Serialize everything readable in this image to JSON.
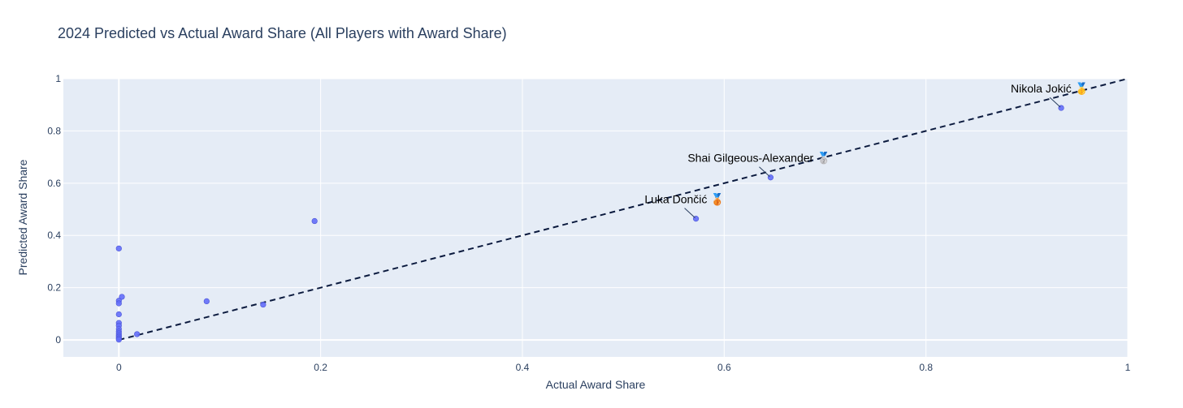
{
  "chart_data": {
    "type": "scatter",
    "title": "2024 Predicted vs Actual Award Share (All Players with Award Share)",
    "xlabel": "Actual Award Share",
    "ylabel": "Predicted Award Share",
    "xlim": [
      -0.055,
      1.0
    ],
    "ylim": [
      -0.065,
      1.0
    ],
    "x_ticks": [
      0,
      0.2,
      0.4,
      0.6,
      0.8,
      1
    ],
    "x_tick_labels": [
      "0",
      "0.2",
      "0.4",
      "0.6",
      "0.8",
      "1"
    ],
    "y_ticks": [
      0,
      0.2,
      0.4,
      0.6,
      0.8,
      1
    ],
    "y_tick_labels": [
      "0",
      "0.2",
      "0.4",
      "0.6",
      "0.8",
      "1"
    ],
    "grid": true,
    "background": "#e5ecf6",
    "marker_color": "#636efa",
    "reference_line": {
      "style": "dashed",
      "color": "#0b1a3e",
      "points": [
        [
          0,
          0
        ],
        [
          1,
          1
        ]
      ]
    },
    "points": [
      {
        "x": 0.934,
        "y": 0.888
      },
      {
        "x": 0.646,
        "y": 0.622
      },
      {
        "x": 0.572,
        "y": 0.464
      },
      {
        "x": 0.194,
        "y": 0.455
      },
      {
        "x": 0.143,
        "y": 0.135
      },
      {
        "x": 0.087,
        "y": 0.148
      },
      {
        "x": 0.018,
        "y": 0.022
      },
      {
        "x": 0.003,
        "y": 0.165
      },
      {
        "x": 0.0,
        "y": 0.35
      },
      {
        "x": 0.0,
        "y": 0.15
      },
      {
        "x": 0.0,
        "y": 0.14
      },
      {
        "x": 0.0,
        "y": 0.098
      },
      {
        "x": 0.0,
        "y": 0.065
      },
      {
        "x": 0.0,
        "y": 0.055
      },
      {
        "x": 0.0,
        "y": 0.042
      },
      {
        "x": 0.0,
        "y": 0.032
      },
      {
        "x": 0.0,
        "y": 0.025
      },
      {
        "x": 0.0,
        "y": 0.018
      },
      {
        "x": 0.0,
        "y": 0.012
      },
      {
        "x": 0.0,
        "y": 0.006
      },
      {
        "x": 0.0,
        "y": 0.001
      }
    ],
    "annotations": [
      {
        "label": "Nikola Jokić",
        "medal": "🥇",
        "medal_name": "gold-medal-icon",
        "ax": 0.934,
        "ay": 0.888
      },
      {
        "label": "Shai Gilgeous-Alexander",
        "medal": "🥈",
        "medal_name": "silver-medal-icon",
        "ax": 0.646,
        "ay": 0.622
      },
      {
        "label": "Luka Dončić",
        "medal": "🥉",
        "medal_name": "bronze-medal-icon",
        "ax": 0.572,
        "ay": 0.464
      }
    ]
  }
}
